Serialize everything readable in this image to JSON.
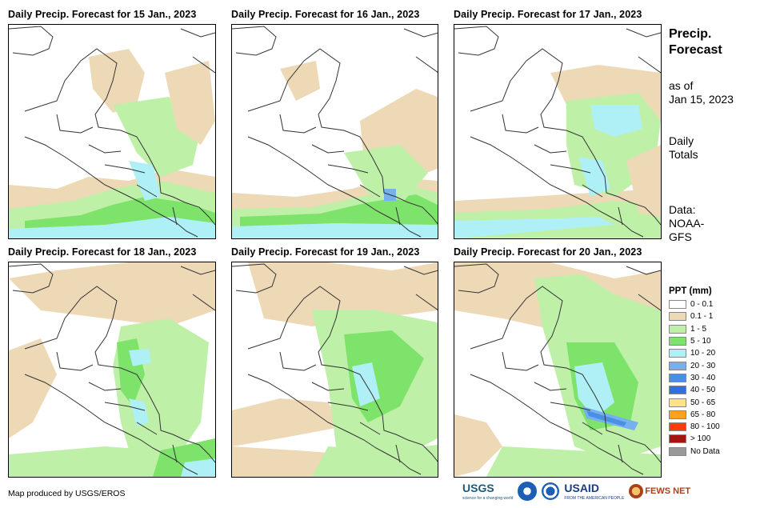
{
  "panels": [
    {
      "title": "Daily Precip. Forecast for 15 Jan., 2023",
      "date": "15 Jan."
    },
    {
      "title": "Daily Precip. Forecast for 16 Jan., 2023",
      "date": "16 Jan."
    },
    {
      "title": "Daily Precip. Forecast for 17 Jan., 2023",
      "date": "17 Jan."
    },
    {
      "title": "Daily Precip. Forecast for 18 Jan., 2023",
      "date": "18 Jan."
    },
    {
      "title": "Daily Precip. Forecast for 19 Jan., 2023",
      "date": "19 Jan."
    },
    {
      "title": "Daily Precip. Forecast for 20 Jan., 2023",
      "date": "20 Jan."
    }
  ],
  "side": {
    "title_line1": "Precip.",
    "title_line2": "Forecast",
    "asof_line1": "as of",
    "asof_line2": "Jan 15, 2023",
    "daily_line1": "Daily",
    "daily_line2": "Totals",
    "data_line1": "Data:",
    "data_line2": "NOAA-",
    "data_line3": "GFS"
  },
  "legend": {
    "title": "PPT (mm)",
    "items": [
      {
        "label": "0 - 0.1",
        "color": "#ffffff"
      },
      {
        "label": "0.1 - 1",
        "color": "#eed9b6"
      },
      {
        "label": "1 - 5",
        "color": "#bff0a8"
      },
      {
        "label": "5 - 10",
        "color": "#7ee36b"
      },
      {
        "label": "10 - 20",
        "color": "#aef0f5"
      },
      {
        "label": "20 - 30",
        "color": "#77b0ee"
      },
      {
        "label": "30 - 40",
        "color": "#4a8fe6"
      },
      {
        "label": "40 - 50",
        "color": "#2f6fde"
      },
      {
        "label": "50 - 65",
        "color": "#ffe389"
      },
      {
        "label": "65 - 80",
        "color": "#ffa11a"
      },
      {
        "label": "80 - 100",
        "color": "#ff3a0a"
      },
      {
        "label": "> 100",
        "color": "#a3150e"
      },
      {
        "label": "No Data",
        "color": "#999999"
      }
    ]
  },
  "credit": "Map produced by USGS/EROS",
  "logos": {
    "usgs": "USGS",
    "usgs_sub": "science for a changing world",
    "usaid": "USAID",
    "usaid_sub": "FROM THE AMERICAN PEOPLE",
    "fewsnet": "FEWS NET",
    "noaa_icon": "noaa-logo-icon",
    "nws_icon": "nws-logo-icon"
  }
}
